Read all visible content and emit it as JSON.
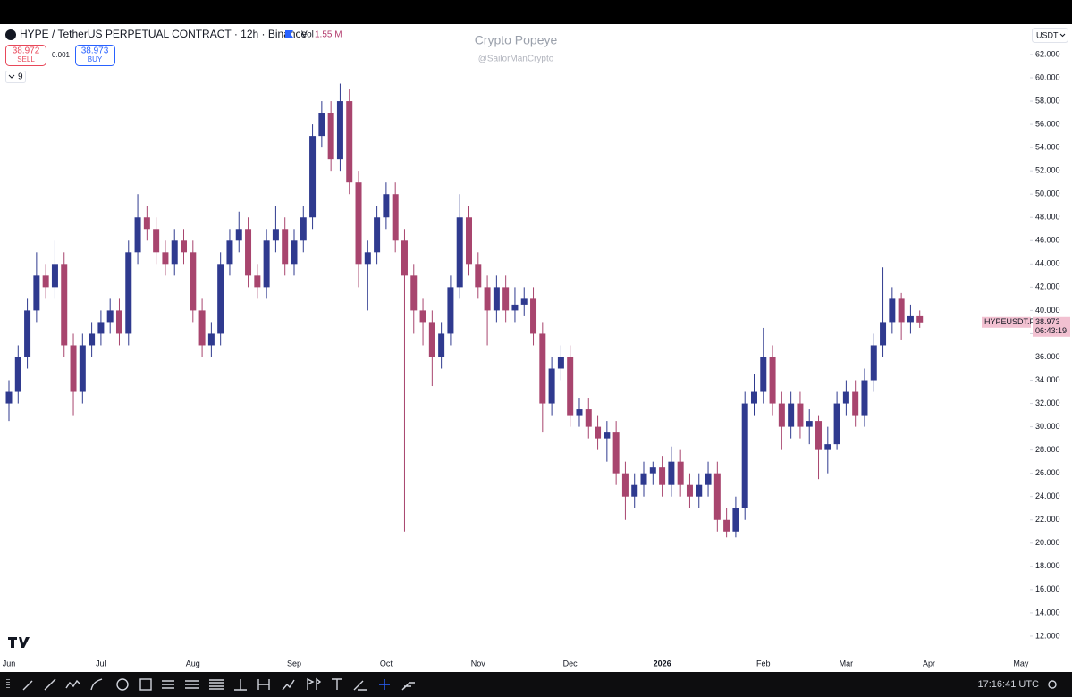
{
  "header": {
    "symbol": "HYPE / TetherUS PERPETUAL CONTRACT · 12h · Binance",
    "vol_label": "Vol",
    "vol_value": "1.55 M",
    "sell_price": "38.972",
    "sell_label": "SELL",
    "spread": "0.001",
    "buy_price": "38.973",
    "buy_label": "BUY",
    "indicators_count": "9"
  },
  "watermark": {
    "title": "Crypto Popeye",
    "handle": "@SailorManCrypto"
  },
  "currency": "USDT",
  "price_tag": {
    "symbol": "HYPEUSDT.P",
    "countdown": "06:43:19"
  },
  "clock": "17:16:41 UTC",
  "chart_data": {
    "type": "candlestick",
    "up_color": "#2f3a8f",
    "down_color": "#a8456e",
    "categories": [
      "Jun",
      null,
      null,
      null,
      null,
      null,
      null,
      null,
      null,
      null,
      "Jul",
      null,
      null,
      null,
      null,
      null,
      null,
      null,
      null,
      null,
      "Aug",
      null,
      null,
      null,
      null,
      null,
      null,
      null,
      null,
      null,
      null,
      "Sep",
      null,
      null,
      null,
      null,
      null,
      null,
      null,
      null,
      null,
      "Oct",
      null,
      null,
      null,
      null,
      null,
      null,
      null,
      null,
      null,
      "Nov",
      null,
      null,
      null,
      null,
      null,
      null,
      null,
      null,
      null,
      "Dec",
      null,
      null,
      null,
      null,
      null,
      null,
      null,
      null,
      null,
      "2026",
      null,
      null,
      null,
      null,
      null,
      null,
      null,
      null,
      null,
      null,
      "Feb",
      null,
      null,
      null,
      null,
      null,
      null,
      null,
      null,
      "Mar",
      null,
      null,
      null,
      null,
      null,
      null,
      null,
      null,
      "Apr",
      null,
      null,
      null,
      null,
      null,
      null,
      null,
      null,
      null,
      "May"
    ],
    "open": [
      32,
      33,
      36,
      40,
      43,
      42,
      44,
      37,
      33,
      37,
      38,
      39,
      40,
      38,
      45,
      48,
      47,
      45,
      44,
      46,
      45,
      40,
      37,
      38,
      44,
      46,
      47,
      43,
      42,
      46,
      47,
      44,
      46,
      48,
      55,
      57,
      53,
      58,
      51,
      44,
      45,
      48,
      50,
      46,
      43,
      40,
      39,
      36,
      38,
      42,
      48,
      44,
      42,
      40,
      42,
      40,
      40.5,
      41,
      38,
      32,
      35,
      36,
      31,
      31.5,
      30,
      29,
      29.5,
      26,
      24,
      25,
      26,
      26.5,
      25,
      27,
      25,
      24,
      25,
      26,
      22,
      21,
      23,
      32,
      33,
      36,
      32,
      30,
      32,
      30,
      30.5,
      28,
      28.5,
      32,
      33,
      31,
      34,
      37,
      39,
      41,
      39,
      39.5,
      null,
      null,
      null,
      null,
      null,
      null,
      null,
      null,
      null,
      null,
      null
    ],
    "high": [
      34,
      37,
      41,
      45,
      44,
      46,
      45,
      38,
      38,
      39,
      40,
      41,
      41,
      46,
      50,
      49,
      48,
      46,
      47,
      47,
      46,
      41,
      39,
      45,
      47,
      48.5,
      48,
      44,
      47,
      49,
      48,
      47,
      49,
      56,
      58,
      58,
      59.5,
      59,
      52,
      46,
      49,
      51,
      51,
      47,
      44,
      41,
      40,
      39,
      43,
      50,
      49,
      45,
      43,
      43,
      43,
      42,
      42,
      42,
      39,
      36,
      37,
      37,
      32.5,
      32.5,
      31,
      30.5,
      30.5,
      27,
      26,
      27,
      27,
      27.5,
      28.3,
      28,
      26,
      26,
      27,
      27,
      23,
      24,
      33,
      34.5,
      38.5,
      37,
      33,
      33,
      33,
      31.5,
      31,
      30,
      33,
      34,
      34,
      35,
      38,
      43.7,
      42,
      41.5,
      40.5,
      40,
      null,
      null,
      null,
      null,
      null,
      null,
      null,
      null,
      null,
      null,
      null
    ],
    "low": [
      30.5,
      32,
      35,
      39,
      41,
      41,
      36,
      31,
      32,
      36,
      37,
      38,
      37,
      37,
      44,
      46,
      44,
      43,
      43,
      44,
      39,
      36,
      36,
      37,
      43,
      45,
      42,
      41,
      41,
      45,
      43,
      43,
      45,
      47,
      54,
      52,
      52,
      50,
      42,
      40,
      44,
      47,
      45,
      21,
      38,
      37,
      33.5,
      35,
      37,
      41,
      43,
      41,
      37,
      39,
      39,
      39,
      39.5,
      37,
      29.5,
      31,
      34,
      30,
      30,
      29,
      28,
      27,
      25,
      22,
      23,
      24,
      25,
      24,
      24,
      24,
      23,
      23,
      24,
      21,
      20.5,
      20.5,
      22,
      31,
      32,
      31,
      28,
      29,
      29,
      28.5,
      25.5,
      26,
      28,
      31,
      30,
      30,
      33,
      36,
      38,
      37.5,
      38,
      38.5,
      null,
      null,
      null,
      null,
      null,
      null,
      null,
      null,
      null,
      null,
      null
    ],
    "close": [
      33,
      36,
      40,
      43,
      42,
      44,
      37,
      33,
      37,
      38,
      39,
      40,
      38,
      45,
      48,
      47,
      45,
      44,
      46,
      45,
      40,
      37,
      38,
      44,
      46,
      47,
      43,
      42,
      46,
      47,
      44,
      46,
      48,
      55,
      57,
      53,
      58,
      51,
      44,
      45,
      48,
      50,
      46,
      43,
      40,
      39,
      36,
      38,
      42,
      48,
      44,
      42,
      40,
      42,
      40,
      40.5,
      41,
      38,
      32,
      35,
      36,
      31,
      31.5,
      30,
      29,
      29.5,
      26,
      24,
      25,
      26,
      26.5,
      25,
      27,
      25,
      24,
      25,
      26,
      22,
      21,
      23,
      32,
      33,
      36,
      32,
      30,
      32,
      30,
      30.5,
      28,
      28.5,
      32,
      33,
      31,
      34,
      37,
      39,
      41,
      39,
      39.5,
      38.973,
      null,
      null,
      null,
      null,
      null,
      null,
      null,
      null,
      null,
      null,
      null
    ],
    "ylim": [
      10.46,
      64.61
    ],
    "yticks": [
      {
        "value": 12,
        "label": "12.000"
      },
      {
        "value": 14,
        "label": "14.000"
      },
      {
        "value": 16,
        "label": "16.000"
      },
      {
        "value": 18,
        "label": "18.000"
      },
      {
        "value": 20,
        "label": "20.000"
      },
      {
        "value": 22,
        "label": "22.000"
      },
      {
        "value": 24,
        "label": "24.000"
      },
      {
        "value": 26,
        "label": "26.000"
      },
      {
        "value": 28,
        "label": "28.000"
      },
      {
        "value": 30,
        "label": "30.000"
      },
      {
        "value": 32,
        "label": "32.000"
      },
      {
        "value": 34,
        "label": "34.000"
      },
      {
        "value": 36,
        "label": "36.000"
      },
      {
        "value": 38,
        "label": "38.000"
      },
      {
        "value": 40,
        "label": "40.000"
      },
      {
        "value": 42,
        "label": "42.000"
      },
      {
        "value": 44,
        "label": "44.000"
      },
      {
        "value": 46,
        "label": "46.000"
      },
      {
        "value": 48,
        "label": "48.000"
      },
      {
        "value": 50,
        "label": "50.000"
      },
      {
        "value": 52,
        "label": "52.000"
      },
      {
        "value": 54,
        "label": "54.000"
      },
      {
        "value": 56,
        "label": "56.000"
      },
      {
        "value": 58,
        "label": "58.000"
      },
      {
        "value": 60,
        "label": "60.000"
      },
      {
        "value": 62,
        "label": "62.000"
      }
    ],
    "grid": false
  }
}
